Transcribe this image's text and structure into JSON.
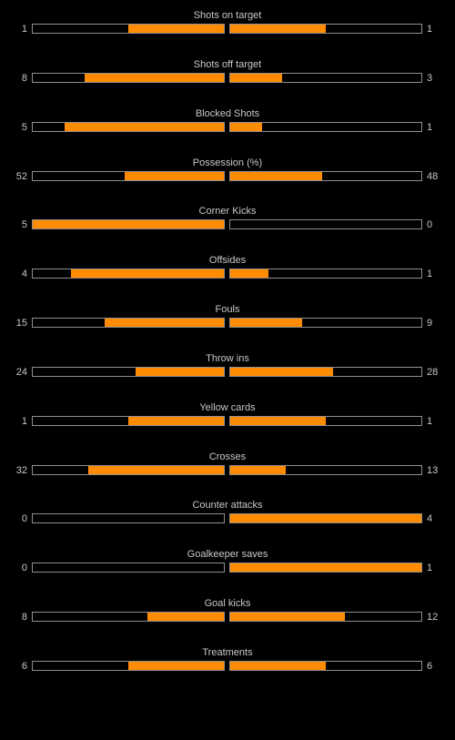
{
  "colors": {
    "background": "#000000",
    "text": "#c8c8c8",
    "bar_fill": "#ff8c00",
    "bar_border": "#8f8f8f"
  },
  "stats": [
    {
      "label": "Shots on target",
      "home": "1",
      "away": "1",
      "home_share": 0.5,
      "away_share": 0.5
    },
    {
      "label": "Shots off target",
      "home": "8",
      "away": "3",
      "home_share": 0.727,
      "away_share": 0.273
    },
    {
      "label": "Blocked Shots",
      "home": "5",
      "away": "1",
      "home_share": 0.833,
      "away_share": 0.167
    },
    {
      "label": "Possession (%)",
      "home": "52",
      "away": "48",
      "home_share": 0.52,
      "away_share": 0.48
    },
    {
      "label": "Corner Kicks",
      "home": "5",
      "away": "0",
      "home_share": 1.0,
      "away_share": 0.0
    },
    {
      "label": "Offsides",
      "home": "4",
      "away": "1",
      "home_share": 0.8,
      "away_share": 0.2
    },
    {
      "label": "Fouls",
      "home": "15",
      "away": "9",
      "home_share": 0.625,
      "away_share": 0.375
    },
    {
      "label": "Throw ins",
      "home": "24",
      "away": "28",
      "home_share": 0.462,
      "away_share": 0.538
    },
    {
      "label": "Yellow cards",
      "home": "1",
      "away": "1",
      "home_share": 0.5,
      "away_share": 0.5
    },
    {
      "label": "Crosses",
      "home": "32",
      "away": "13",
      "home_share": 0.711,
      "away_share": 0.289
    },
    {
      "label": "Counter attacks",
      "home": "0",
      "away": "4",
      "home_share": 0.0,
      "away_share": 1.0
    },
    {
      "label": "Goalkeeper saves",
      "home": "0",
      "away": "1",
      "home_share": 0.0,
      "away_share": 1.0
    },
    {
      "label": "Goal kicks",
      "home": "8",
      "away": "12",
      "home_share": 0.4,
      "away_share": 0.6
    },
    {
      "label": "Treatments",
      "home": "6",
      "away": "6",
      "home_share": 0.5,
      "away_share": 0.5
    }
  ]
}
